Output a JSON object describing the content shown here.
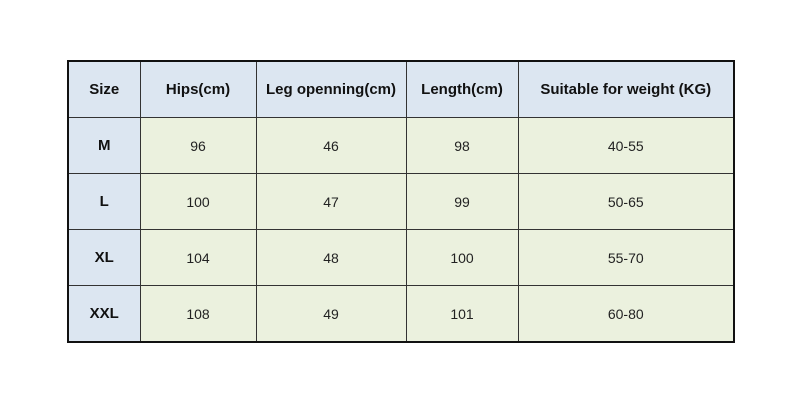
{
  "table": {
    "headers": [
      "Size",
      "Hips(cm)",
      "Leg openning(cm)",
      "Length(cm)",
      "Suitable for weight (KG)"
    ],
    "rows": [
      [
        "M",
        "96",
        "46",
        "98",
        "40-55"
      ],
      [
        "L",
        "100",
        "47",
        "99",
        "50-65"
      ],
      [
        "XL",
        "104",
        "48",
        "100",
        "55-70"
      ],
      [
        "XXL",
        "108",
        "49",
        "101",
        "60-80"
      ]
    ]
  },
  "colors": {
    "header_bg": "#dce6f1",
    "cell_bg": "#ebf1de",
    "border": "#111111"
  }
}
